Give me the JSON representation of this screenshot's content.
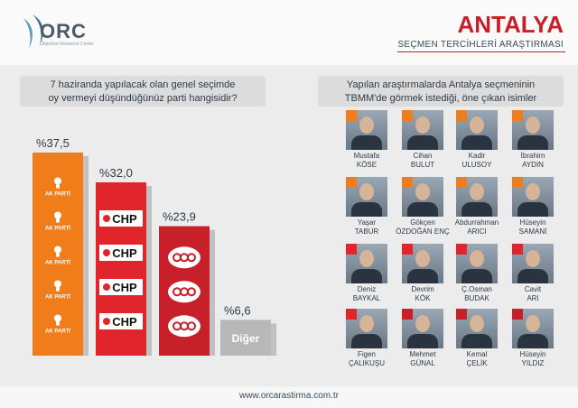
{
  "header": {
    "logo_text": "ORC",
    "logo_sub": "Objective Research Center",
    "title": "ANTALYA",
    "subtitle": "SEÇMEN TERCİHLERİ ARAŞTIRMASI"
  },
  "left_question": [
    "7 haziranda yapılacak olan genel seçimde",
    "oy vermeyi düşündüğünüz parti hangisidir?"
  ],
  "right_question": [
    "Yapılan araştırmalarda Antalya seçmeninin",
    "TBMM'de görmek istediği, öne çıkan isimler"
  ],
  "chart_data": {
    "type": "bar",
    "categories": [
      "AK PARTİ",
      "CHP",
      "MHP",
      "Diğer"
    ],
    "values": [
      37.5,
      32.0,
      23.9,
      6.6
    ],
    "value_labels": [
      "%37,5",
      "%32,0",
      "%23,9",
      "%6,6"
    ],
    "colors": [
      "#f07d1a",
      "#e0262c",
      "#c8202a",
      "#b8b8b8"
    ],
    "ylim": [
      0,
      40
    ]
  },
  "logos": {
    "ak_label": "AK PARTİ",
    "chp_label": "CHP",
    "other_label": "Diğer"
  },
  "people": [
    {
      "first": "Mustafa",
      "last": "KÖSE",
      "party": "ak"
    },
    {
      "first": "Cihan",
      "last": "BULUT",
      "party": "ak"
    },
    {
      "first": "Kadir",
      "last": "ULUSOY",
      "party": "ak"
    },
    {
      "first": "İbrahim",
      "last": "AYDIN",
      "party": "ak"
    },
    {
      "first": "Yaşar",
      "last": "TABUR",
      "party": "ak"
    },
    {
      "first": "Gökçen",
      "last": "ÖZDOĞAN ENÇ",
      "party": "ak"
    },
    {
      "first": "Abdurrahman",
      "last": "ARICI",
      "party": "ak"
    },
    {
      "first": "Hüseyin",
      "last": "SAMANİ",
      "party": "ak"
    },
    {
      "first": "Deniz",
      "last": "BAYKAL",
      "party": "chp"
    },
    {
      "first": "Devrim",
      "last": "KÖK",
      "party": "chp"
    },
    {
      "first": "Ç.Osman",
      "last": "BUDAK",
      "party": "chp"
    },
    {
      "first": "Cavit",
      "last": "ARI",
      "party": "chp"
    },
    {
      "first": "Figen",
      "last": "ÇALIKUŞU",
      "party": "chp"
    },
    {
      "first": "Mehmet",
      "last": "GÜNAL",
      "party": "mhp"
    },
    {
      "first": "Kemal",
      "last": "ÇELİK",
      "party": "mhp"
    },
    {
      "first": "Hüseyin",
      "last": "YILDIZ",
      "party": "mhp"
    }
  ],
  "footer": "www.orcarastirma.com.tr"
}
